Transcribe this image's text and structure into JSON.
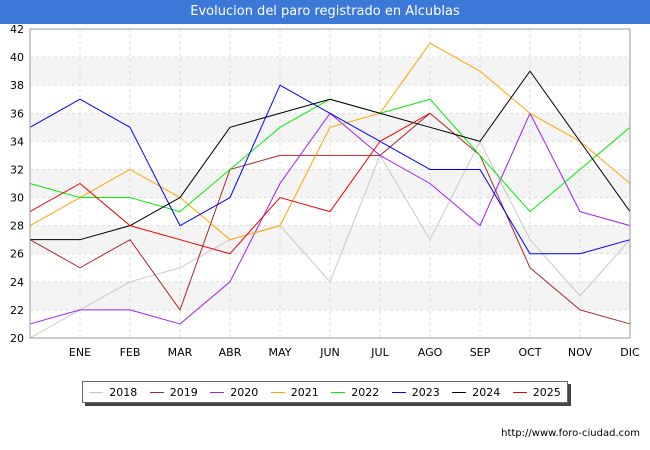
{
  "title": "Evolucion del paro registrado en Alcublas",
  "footer_url": "http://www.foro-ciudad.com",
  "chart_data": {
    "type": "line",
    "title": "Evolucion del paro registrado en Alcublas",
    "categories": [
      "",
      "ENE",
      "FEB",
      "MAR",
      "ABR",
      "MAY",
      "JUN",
      "JUL",
      "AGO",
      "SEP",
      "OCT",
      "NOV",
      "DIC"
    ],
    "ylim": [
      20,
      42
    ],
    "yticks": [
      20,
      22,
      24,
      26,
      28,
      30,
      32,
      34,
      36,
      38,
      40,
      42
    ],
    "grid": true,
    "legend_position": "bottom",
    "series": [
      {
        "name": "2018",
        "color": "#c8c8c8",
        "values": [
          20,
          22,
          24,
          25,
          27,
          28,
          24,
          33,
          27,
          34,
          27,
          23,
          27
        ]
      },
      {
        "name": "2019",
        "color": "#a52a2a",
        "values": [
          27,
          25,
          27,
          22,
          32,
          33,
          33,
          33,
          36,
          33,
          25,
          22,
          21
        ]
      },
      {
        "name": "2020",
        "color": "#a020f0",
        "values": [
          21,
          22,
          22,
          21,
          24,
          31,
          36,
          33,
          31,
          28,
          36,
          29,
          28
        ]
      },
      {
        "name": "2021",
        "color": "#ffa500",
        "values": [
          28,
          30,
          32,
          30,
          27,
          28,
          35,
          36,
          41,
          39,
          36,
          34,
          31
        ]
      },
      {
        "name": "2022",
        "color": "#00ee00",
        "values": [
          31,
          30,
          30,
          29,
          32,
          35,
          37,
          36,
          37,
          33,
          29,
          32,
          35
        ]
      },
      {
        "name": "2023",
        "color": "#0000ff",
        "values": [
          35,
          37,
          35,
          28,
          30,
          38,
          36,
          34,
          32,
          32,
          26,
          26,
          27
        ]
      },
      {
        "name": "2024",
        "color": "#000000",
        "values": [
          27,
          27,
          28,
          30,
          35,
          36,
          37,
          36,
          35,
          34,
          39,
          34,
          29
        ]
      },
      {
        "name": "2025",
        "color": "#ee0000",
        "values": [
          29,
          31,
          28,
          27,
          26,
          30,
          29,
          34,
          36,
          null,
          null,
          null,
          null
        ]
      }
    ]
  }
}
